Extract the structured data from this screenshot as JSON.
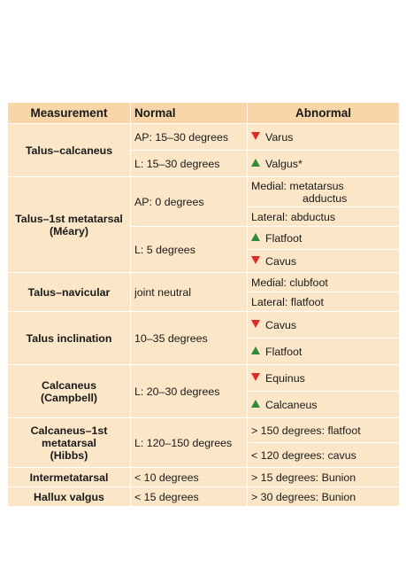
{
  "header": {
    "measurement": "Measurement",
    "normal": "Normal",
    "abnormal": "Abnormal"
  },
  "rows": {
    "talus_calcaneus": {
      "name": "Talus–calcaneus",
      "normal_ap": "AP:  15–30 degrees",
      "normal_l": "L:  15–30 degrees",
      "abn_ap": "Varus",
      "abn_l": "Valgus*"
    },
    "talus_1st_metatarsal": {
      "name_line1": "Talus–1st metatarsal",
      "name_line2": "(Méary)",
      "normal_ap": "AP:  0 degrees",
      "normal_l": "L:  5 degrees",
      "abn_medial_line1": "Medial:  metatarsus",
      "abn_medial_line2": "adductus",
      "abn_lateral": "Lateral:  abductus",
      "abn_flatfoot": "Flatfoot",
      "abn_cavus": "Cavus"
    },
    "talus_navicular": {
      "name": "Talus–navicular",
      "normal": "joint neutral",
      "abn_medial": "Medial:  clubfoot",
      "abn_lateral": "Lateral:  flatfoot"
    },
    "talus_inclination": {
      "name": "Talus inclination",
      "normal": "10–35 degrees",
      "abn_1": "Cavus",
      "abn_2": "Flatfoot"
    },
    "calcaneus": {
      "name_line1": "Calcaneus",
      "name_line2": "(Campbell)",
      "normal": "L:  20–30 degrees",
      "abn_1": "Equinus",
      "abn_2": "Calcaneus"
    },
    "calcaneus_1st_metatarsal": {
      "name_line1": "Calcaneus–1st",
      "name_line2": "metatarsal",
      "name_line3": "(Hibbs)",
      "normal": "L:  120–150 degrees",
      "abn_1": "> 150 degrees:  flatfoot",
      "abn_2": "< 120 degrees:  cavus"
    },
    "intermetatarsal": {
      "name": "Intermetatarsal",
      "normal": "< 10 degrees",
      "abn": "> 15 degrees:  Bunion"
    },
    "hallux_valgus": {
      "name": "Hallux valgus",
      "normal": "< 15 degrees",
      "abn": "> 30 degrees:  Bunion"
    }
  },
  "colors": {
    "header_bg": "#f9d6a8",
    "cell_bg": "#fbe6c8",
    "decrease_red": "#e02a28",
    "increase_green": "#2e8b3a"
  }
}
